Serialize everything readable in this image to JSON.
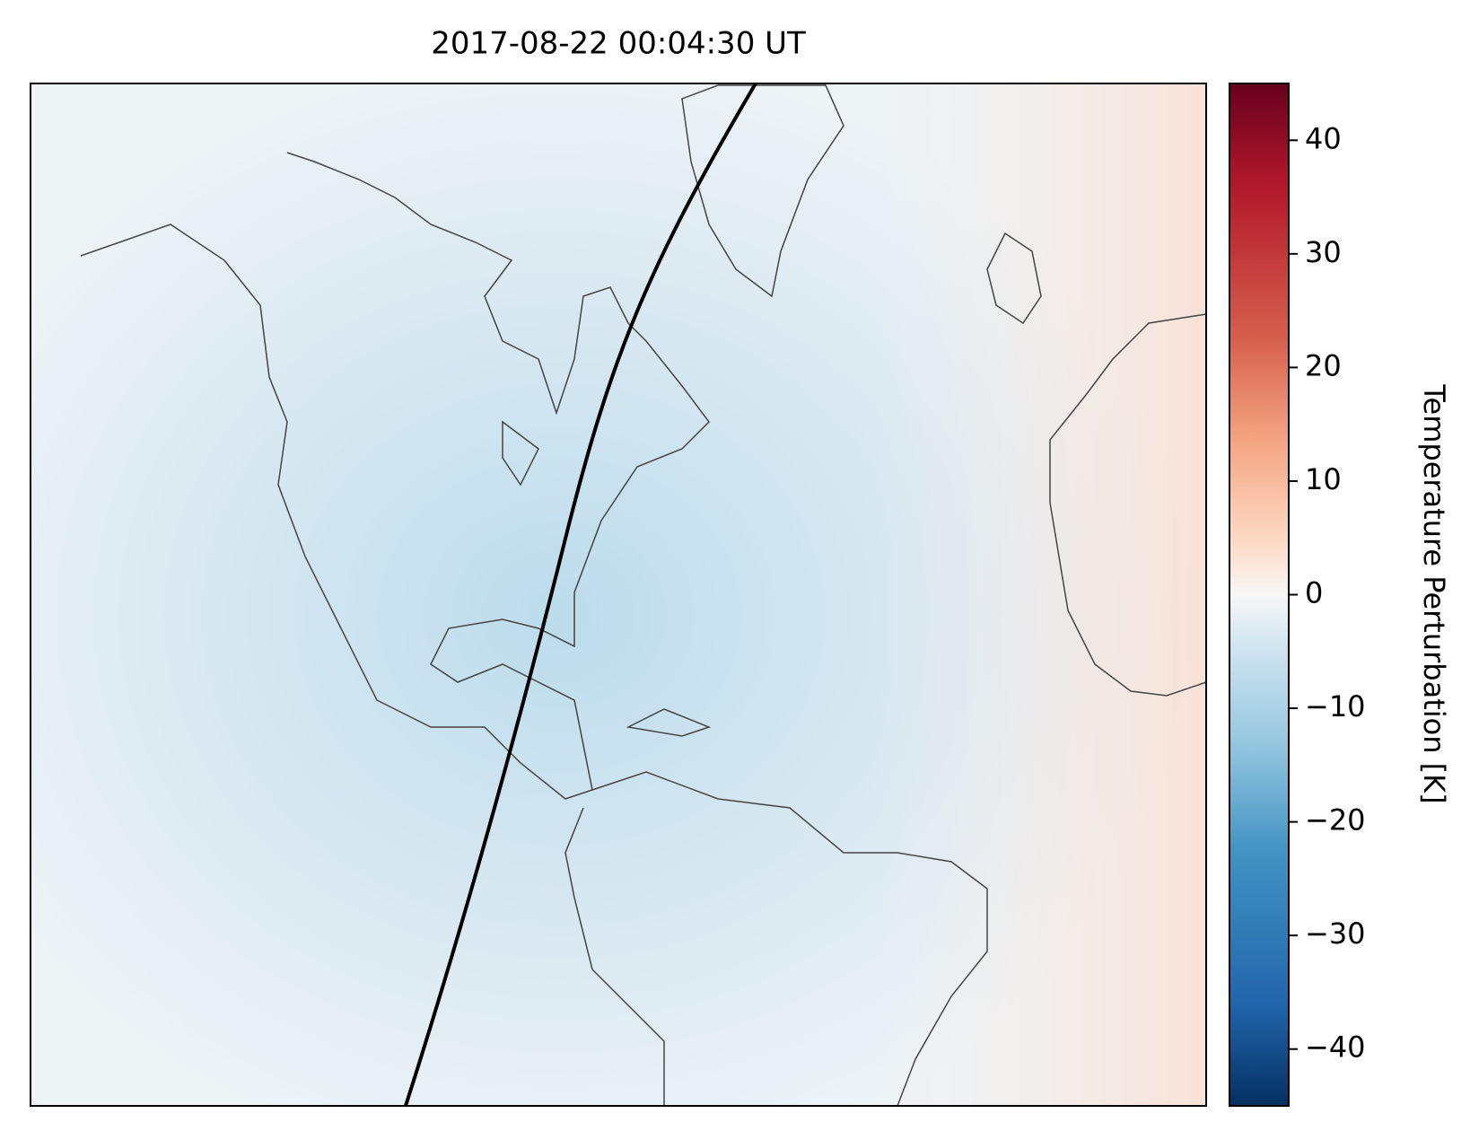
{
  "chart_data": {
    "type": "map",
    "title": "2017-08-22 00:04:30 UT",
    "colorbar": {
      "label": "Temperature Perturbation [K]",
      "lim": [
        -45,
        45
      ],
      "ticks": [
        {
          "value": -40,
          "label": "−40"
        },
        {
          "value": -30,
          "label": "−30"
        },
        {
          "value": -20,
          "label": "−20"
        },
        {
          "value": -10,
          "label": "−10"
        },
        0,
        10,
        20,
        30,
        40
      ]
    }
  }
}
